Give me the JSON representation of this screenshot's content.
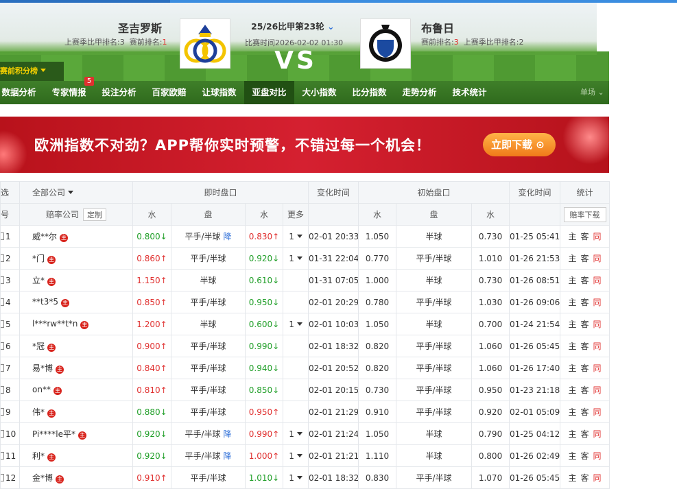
{
  "header": {
    "home_team": "圣吉罗斯",
    "home_last_season_rank_label": "上赛季比甲排名:",
    "home_last_season_rank": "3",
    "home_pre_rank_label": "赛前排名:",
    "home_pre_rank": "1",
    "league_round": "25/26比甲第23轮",
    "match_time": "比赛时间2026-02-02 01:30",
    "vs": "VS",
    "away_team": "布鲁日",
    "away_pre_rank_label": "赛前排名:",
    "away_pre_rank": "3",
    "away_last_season_rank_label": "上赛季比甲排名:",
    "away_last_season_rank": "2",
    "standings_button": "赛前积分榜"
  },
  "nav": {
    "items": [
      "数据分析",
      "专家情报",
      "投注分析",
      "百家欧赔",
      "让球指数",
      "亚盘对比",
      "大小指数",
      "比分指数",
      "走势分析",
      "技术统计"
    ],
    "badge": "5",
    "single": "单场"
  },
  "banner": {
    "text": "欧洲指数不对劲？APP帮你实时预警，不错过每一个机会！",
    "button": "立即下载"
  },
  "table": {
    "head1": [
      "选",
      "全部公司",
      "即时盘口",
      "变化时间",
      "初始盘口",
      "变化时间",
      "统计"
    ],
    "head2": {
      "no": "号",
      "company": "赔率公司",
      "customize": "定制",
      "home": "水",
      "line": "盘",
      "away": "水",
      "more": "更多",
      "init_home": "水",
      "init_line": "盘",
      "init_away": "水",
      "download": "赔率下载"
    },
    "company_badge": "主",
    "stats_links": [
      "主",
      "客",
      "同"
    ],
    "rows": [
      {
        "no": "1",
        "company": "威**尔",
        "home": "0.800↓",
        "line": "平手/半球",
        "drop": "降",
        "away": "0.830↑",
        "more": "1",
        "time": "02-01 20:33",
        "init_home": "1.050",
        "init_line": "半球",
        "init_away": "0.730",
        "init_time": "01-25 05:41"
      },
      {
        "no": "2",
        "company": "*门",
        "home": "0.860↑",
        "line": "平手/半球",
        "away": "0.920↓",
        "more": "1",
        "time": "01-31 22:04",
        "init_home": "0.770",
        "init_line": "平手/半球",
        "init_away": "1.010",
        "init_time": "01-26 21:53"
      },
      {
        "no": "3",
        "company": "立*",
        "home": "1.150↑",
        "line": "半球",
        "away": "0.610↓",
        "time": "01-31 07:05",
        "init_home": "1.000",
        "init_line": "半球",
        "init_away": "0.730",
        "init_time": "01-26 08:51"
      },
      {
        "no": "4",
        "company": "**t3*5",
        "home": "0.850↑",
        "line": "平手/半球",
        "away": "0.950↓",
        "time": "02-01 20:29",
        "init_home": "0.780",
        "init_line": "平手/半球",
        "init_away": "1.030",
        "init_time": "01-26 09:06"
      },
      {
        "no": "5",
        "company": "l***rw**t*n",
        "home": "1.200↑",
        "line": "半球",
        "away": "0.600↓",
        "more": "1",
        "time": "02-01 10:03",
        "init_home": "1.050",
        "init_line": "半球",
        "init_away": "0.700",
        "init_time": "01-24 21:54"
      },
      {
        "no": "6",
        "company": "*冠",
        "home": "0.900↑",
        "line": "平手/半球",
        "away": "0.990↓",
        "time": "02-01 18:32",
        "init_home": "0.820",
        "init_line": "平手/半球",
        "init_away": "1.060",
        "init_time": "01-26 05:45"
      },
      {
        "no": "7",
        "company": "易*博",
        "home": "0.840↑",
        "line": "平手/半球",
        "away": "0.940↓",
        "time": "02-01 20:52",
        "init_home": "0.820",
        "init_line": "平手/半球",
        "init_away": "1.060",
        "init_time": "01-26 17:40"
      },
      {
        "no": "8",
        "company": "on**",
        "home": "0.810↑",
        "line": "平手/半球",
        "away": "0.850↓",
        "time": "02-01 20:15",
        "init_home": "0.730",
        "init_line": "平手/半球",
        "init_away": "0.950",
        "init_time": "01-23 21:18"
      },
      {
        "no": "9",
        "company": "伟*",
        "home": "0.880↓",
        "line": "平手/半球",
        "away": "0.950↑",
        "time": "02-01 21:29",
        "init_home": "0.910",
        "init_line": "平手/半球",
        "init_away": "0.920",
        "init_time": "02-01 05:09"
      },
      {
        "no": "10",
        "company": "Pi****le平*",
        "home": "0.920↓",
        "line": "平手/半球",
        "drop": "降",
        "away": "0.990↑",
        "more": "1",
        "time": "02-01 21:24",
        "init_home": "1.050",
        "init_line": "半球",
        "init_away": "0.790",
        "init_time": "01-25 04:12"
      },
      {
        "no": "11",
        "company": "利*",
        "home": "0.920↓",
        "line": "平手/半球",
        "drop": "降",
        "away": "1.000↑",
        "more": "1",
        "time": "02-01 21:21",
        "init_home": "1.110",
        "init_line": "半球",
        "init_away": "0.800",
        "init_time": "01-26 02:49"
      },
      {
        "no": "12",
        "company": "金*博",
        "home": "0.910↑",
        "line": "平手/半球",
        "away": "1.010↓",
        "more": "1",
        "time": "02-01 18:32",
        "init_home": "0.830",
        "init_line": "平手/半球",
        "init_away": "1.070",
        "init_time": "01-26 05:45"
      }
    ]
  }
}
